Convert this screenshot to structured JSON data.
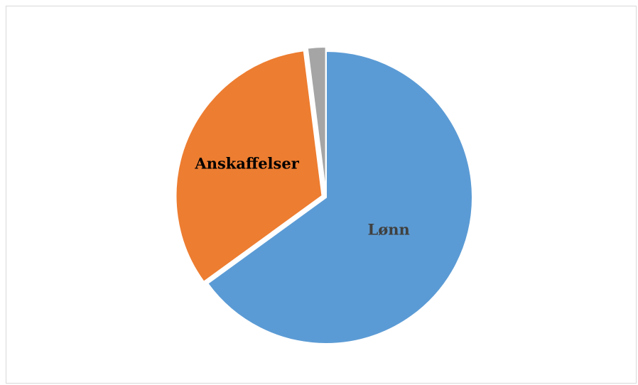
{
  "chart_data": {
    "type": "pie",
    "categories": [
      "Lønn",
      "Anskaffelser",
      ""
    ],
    "values": [
      65,
      33,
      2
    ],
    "colors": [
      "#5b9bd5",
      "#ed7d31",
      "#a5a5a5"
    ],
    "label_colors": [
      "#404040",
      "#000000",
      "#000000"
    ],
    "exploded_slices": [
      "Anskaffelser",
      ""
    ],
    "title": "",
    "legend": "none"
  }
}
